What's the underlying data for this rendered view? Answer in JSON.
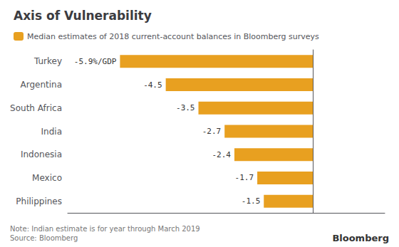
{
  "chart_data": {
    "type": "bar",
    "orientation": "horizontal",
    "title": "Axis of Vulnerability",
    "categories": [
      "Turkey",
      "Argentina",
      "South Africa",
      "India",
      "Indonesia",
      "Mexico",
      "Philippines"
    ],
    "series": [
      {
        "name": "Median estimates of 2018 current-account balances in Bloomberg surveys",
        "color": "#E8A020",
        "values": [
          -5.9,
          -4.5,
          -3.5,
          -2.7,
          -2.4,
          -1.7,
          -1.5
        ],
        "value_labels": [
          "-5.9%/GDP",
          "-4.5",
          "-3.5",
          "-2.7",
          "-2.4",
          "-1.7",
          "-1.5"
        ]
      }
    ],
    "xlim": [
      -7.5,
      2.2
    ],
    "tick_labels": false,
    "grid": false,
    "data_labels": true,
    "legend": "top left",
    "annotations": [
      "Note: Indian estimate is for year through March 2019\nSource: Bloomberg",
      "Bloomberg"
    ]
  }
}
